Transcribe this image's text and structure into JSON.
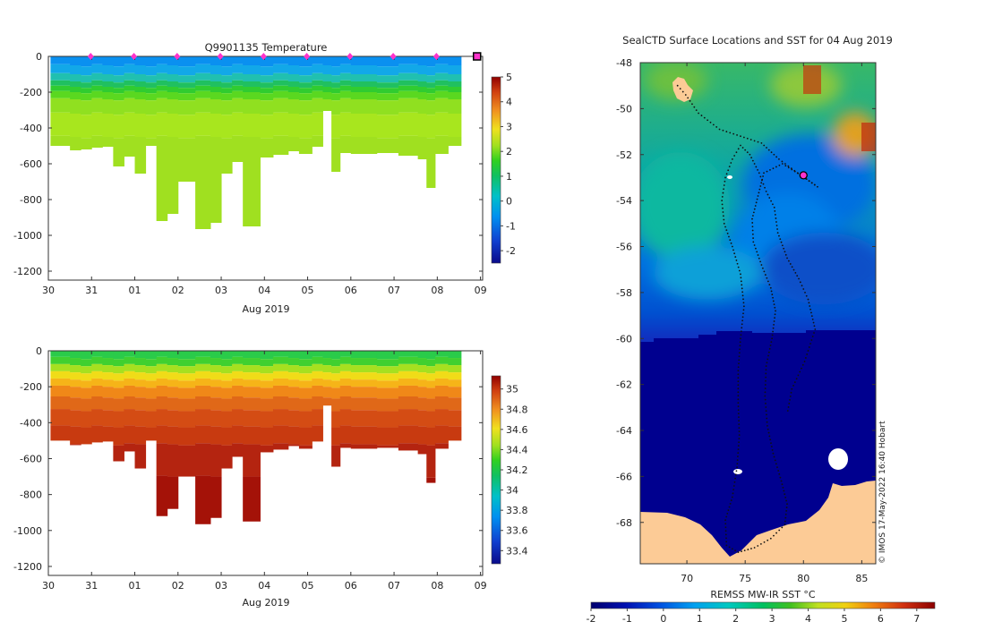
{
  "colors": {
    "land": "#fccb96",
    "marker": "#ff33cc",
    "track": "#111111",
    "axis": "#333333"
  },
  "chart_data": [
    {
      "type": "heatmap",
      "title": "Q9901135  Temperature",
      "xlabel": "Aug 2019",
      "ylabel": "",
      "xticks": [
        "30",
        "31",
        "01",
        "02",
        "03",
        "04",
        "05",
        "06",
        "07",
        "08",
        "09"
      ],
      "xlim": [
        0,
        10.05
      ],
      "ylim": [
        -1250,
        0
      ],
      "yticks": [
        0,
        -200,
        -400,
        -600,
        -800,
        -1000,
        -1200
      ],
      "colorbar": {
        "min": -2.5,
        "max": 5,
        "ticks": [
          5,
          4,
          3,
          2,
          1,
          0,
          -1,
          -2
        ]
      },
      "profile_markers_day": [
        1,
        2,
        3,
        4,
        5,
        6,
        7,
        8,
        9
      ],
      "latest_profile_day": 10,
      "profiles": [
        {
          "t": 0.05,
          "w": 0.45,
          "max_depth": 500
        },
        {
          "t": 0.5,
          "w": 0.25,
          "max_depth": 525
        },
        {
          "t": 0.75,
          "w": 0.25,
          "max_depth": 520
        },
        {
          "t": 1.0,
          "w": 0.25,
          "max_depth": 510
        },
        {
          "t": 1.25,
          "w": 0.25,
          "max_depth": 505
        },
        {
          "t": 1.5,
          "w": 0.25,
          "max_depth": 615
        },
        {
          "t": 1.75,
          "w": 0.25,
          "max_depth": 560
        },
        {
          "t": 2.0,
          "w": 0.25,
          "max_depth": 655
        },
        {
          "t": 2.25,
          "w": 0.25,
          "max_depth": 500
        },
        {
          "t": 2.5,
          "w": 0.25,
          "max_depth": 920
        },
        {
          "t": 2.75,
          "w": 0.25,
          "max_depth": 880
        },
        {
          "t": 3.0,
          "w": 0.4,
          "max_depth": 700
        },
        {
          "t": 3.4,
          "w": 0.35,
          "max_depth": 965
        },
        {
          "t": 3.75,
          "w": 0.25,
          "max_depth": 930
        },
        {
          "t": 4.0,
          "w": 0.25,
          "max_depth": 655
        },
        {
          "t": 4.25,
          "w": 0.25,
          "max_depth": 590
        },
        {
          "t": 4.5,
          "w": 0.4,
          "max_depth": 950
        },
        {
          "t": 4.9,
          "w": 0.3,
          "max_depth": 565
        },
        {
          "t": 5.2,
          "w": 0.35,
          "max_depth": 550
        },
        {
          "t": 5.55,
          "w": 0.25,
          "max_depth": 530
        },
        {
          "t": 5.8,
          "w": 0.3,
          "max_depth": 545
        },
        {
          "t": 6.1,
          "w": 0.25,
          "max_depth": 505
        },
        {
          "t": 6.35,
          "w": 0.2,
          "max_depth": 305
        },
        {
          "t": 6.55,
          "w": 0.2,
          "max_depth": 645
        },
        {
          "t": 6.75,
          "w": 0.25,
          "max_depth": 540
        },
        {
          "t": 7.0,
          "w": 0.6,
          "max_depth": 545
        },
        {
          "t": 7.6,
          "w": 0.5,
          "max_depth": 540
        },
        {
          "t": 8.1,
          "w": 0.45,
          "max_depth": 555
        },
        {
          "t": 8.55,
          "w": 0.2,
          "max_depth": 575
        },
        {
          "t": 8.75,
          "w": 0.2,
          "max_depth": 735
        },
        {
          "t": 8.95,
          "w": 0.3,
          "max_depth": 545
        },
        {
          "t": 9.25,
          "w": 0.3,
          "max_depth": 500
        }
      ]
    },
    {
      "type": "heatmap",
      "title": "",
      "xlabel": "Aug 2019",
      "ylabel": "",
      "xticks": [
        "30",
        "31",
        "01",
        "02",
        "03",
        "04",
        "05",
        "06",
        "07",
        "08",
        "09"
      ],
      "xlim": [
        0,
        10.05
      ],
      "ylim": [
        -1250,
        0
      ],
      "yticks": [
        0,
        -200,
        -400,
        -600,
        -800,
        -1000,
        -1200
      ],
      "colorbar": {
        "min": 33.27,
        "max": 35.13,
        "ticks": [
          35,
          34.8,
          34.6,
          34.4,
          34.2,
          34,
          33.8,
          33.6,
          33.4
        ]
      }
    },
    {
      "type": "heatmap",
      "title": "SealCTD Surface Locations and SST for 04 Aug 2019",
      "xlabel": "",
      "ylabel": "",
      "xlim": [
        66,
        86.2
      ],
      "ylim": [
        -69.8,
        -48
      ],
      "xticks": [
        70,
        75,
        80,
        85
      ],
      "yticks": [
        -48,
        -50,
        -52,
        -54,
        -56,
        -58,
        -60,
        -62,
        -64,
        -66,
        -68
      ],
      "colorbar": {
        "label": "REMSS MW-IR SST °C",
        "min": -2,
        "max": 7.5,
        "ticks": [
          -2,
          -1,
          0,
          1,
          2,
          3,
          4,
          5,
          6,
          7
        ]
      },
      "credit": "© IMOS 17-May-2022 16:40 Hobart",
      "current_position": {
        "lon": 80.0,
        "lat": -52.9
      },
      "track": [
        [
          69.2,
          -49.0
        ],
        [
          69.9,
          -49.4
        ],
        [
          71.0,
          -50.2
        ],
        [
          72.8,
          -50.9
        ],
        [
          74.6,
          -51.2
        ],
        [
          76.4,
          -51.5
        ],
        [
          77.9,
          -52.2
        ],
        [
          79.5,
          -52.8
        ],
        [
          81.2,
          -53.4
        ],
        [
          79.8,
          -52.9
        ],
        [
          78.2,
          -52.4
        ],
        [
          76.6,
          -52.8
        ],
        [
          76.1,
          -53.8
        ],
        [
          75.6,
          -54.8
        ],
        [
          75.7,
          -55.8
        ],
        [
          76.4,
          -56.8
        ],
        [
          77.2,
          -57.8
        ],
        [
          77.6,
          -58.8
        ],
        [
          77.3,
          -60.0
        ],
        [
          76.8,
          -61.2
        ],
        [
          76.7,
          -62.5
        ],
        [
          76.9,
          -63.8
        ],
        [
          77.4,
          -65.0
        ],
        [
          78.1,
          -66.2
        ],
        [
          78.6,
          -67.2
        ],
        [
          78.4,
          -68.1
        ],
        [
          77.2,
          -68.7
        ],
        [
          75.8,
          -69.1
        ],
        [
          74.4,
          -69.3
        ],
        [
          73.4,
          -69.0
        ],
        [
          73.3,
          -67.9
        ],
        [
          73.9,
          -66.9
        ],
        [
          74.3,
          -65.6
        ],
        [
          74.5,
          -64.2
        ],
        [
          74.4,
          -62.8
        ],
        [
          74.4,
          -61.4
        ],
        [
          74.6,
          -60.0
        ],
        [
          74.9,
          -58.6
        ],
        [
          74.6,
          -57.2
        ],
        [
          73.9,
          -56.0
        ],
        [
          73.2,
          -55.0
        ],
        [
          73.0,
          -54.0
        ],
        [
          73.3,
          -53.0
        ],
        [
          73.9,
          -52.2
        ],
        [
          74.6,
          -51.6
        ],
        [
          75.4,
          -52.0
        ],
        [
          76.2,
          -52.8
        ],
        [
          76.8,
          -53.6
        ],
        [
          77.5,
          -54.3
        ],
        [
          77.8,
          -55.4
        ],
        [
          78.6,
          -56.5
        ],
        [
          79.6,
          -57.4
        ],
        [
          80.4,
          -58.3
        ],
        [
          81.0,
          -59.6
        ],
        [
          80.1,
          -61.0
        ],
        [
          79.0,
          -62.2
        ],
        [
          78.6,
          -63.3
        ]
      ]
    }
  ]
}
